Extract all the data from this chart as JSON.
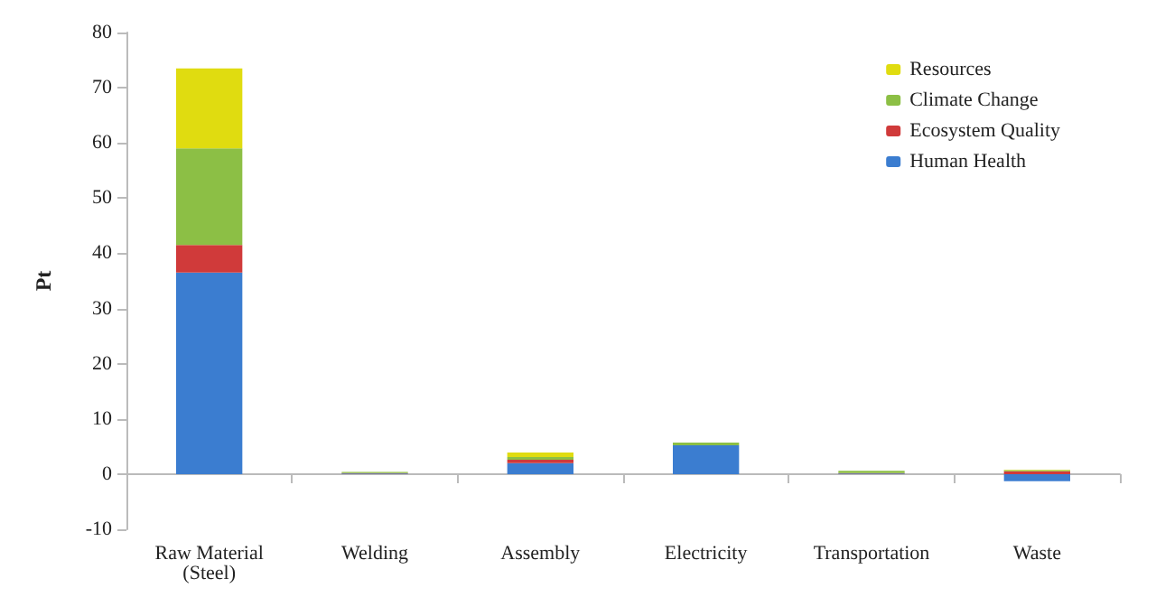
{
  "chart_data": {
    "type": "bar",
    "stacked": true,
    "ylabel": "Pt",
    "categories": [
      "Raw Material\n(Steel)",
      "Welding",
      "Assembly",
      "Electricity",
      "Transportation",
      "Waste"
    ],
    "series": [
      {
        "name": "Human Health",
        "color": "#3b7dd0",
        "values": [
          36.5,
          0.1,
          2,
          5.2,
          0.1,
          -1.3
        ]
      },
      {
        "name": "Ecosystem Quality",
        "color": "#d03a3a",
        "values": [
          5,
          0.1,
          0.6,
          null,
          0.1,
          0.5
        ]
      },
      {
        "name": "Climate Change",
        "color": "#8cbf45",
        "values": [
          17.5,
          0.2,
          0.5,
          0.5,
          0.4,
          0.2
        ]
      },
      {
        "name": "Resources",
        "color": "#e0dc10",
        "values": [
          14.5,
          null,
          0.8,
          null,
          null,
          0.1
        ]
      }
    ],
    "ylim": [
      -10,
      80
    ],
    "yticks": [
      -10,
      0,
      10,
      20,
      30,
      40,
      50,
      60,
      70,
      80
    ],
    "legend": "top right"
  }
}
